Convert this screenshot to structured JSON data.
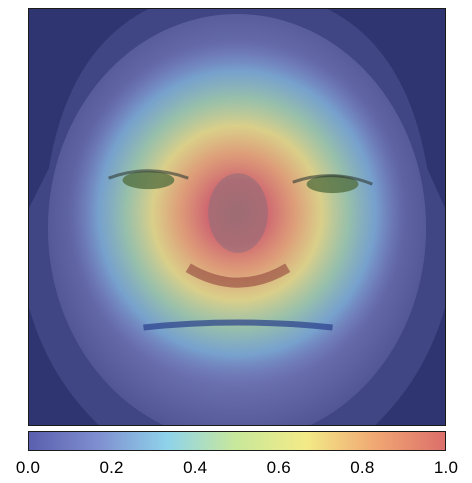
{
  "colorbar": {
    "ticks": [
      "0.0",
      "0.2",
      "0.4",
      "0.6",
      "0.8",
      "1.0"
    ],
    "colors": [
      "#5a5fae",
      "#7f8fd0",
      "#8fd3ea",
      "#c9e89a",
      "#f3ea87",
      "#f0a773",
      "#dc6f6b"
    ]
  },
  "heatmap": {
    "overlay_peak_value": 1.0,
    "overlay_peak_label": "nose region"
  }
}
